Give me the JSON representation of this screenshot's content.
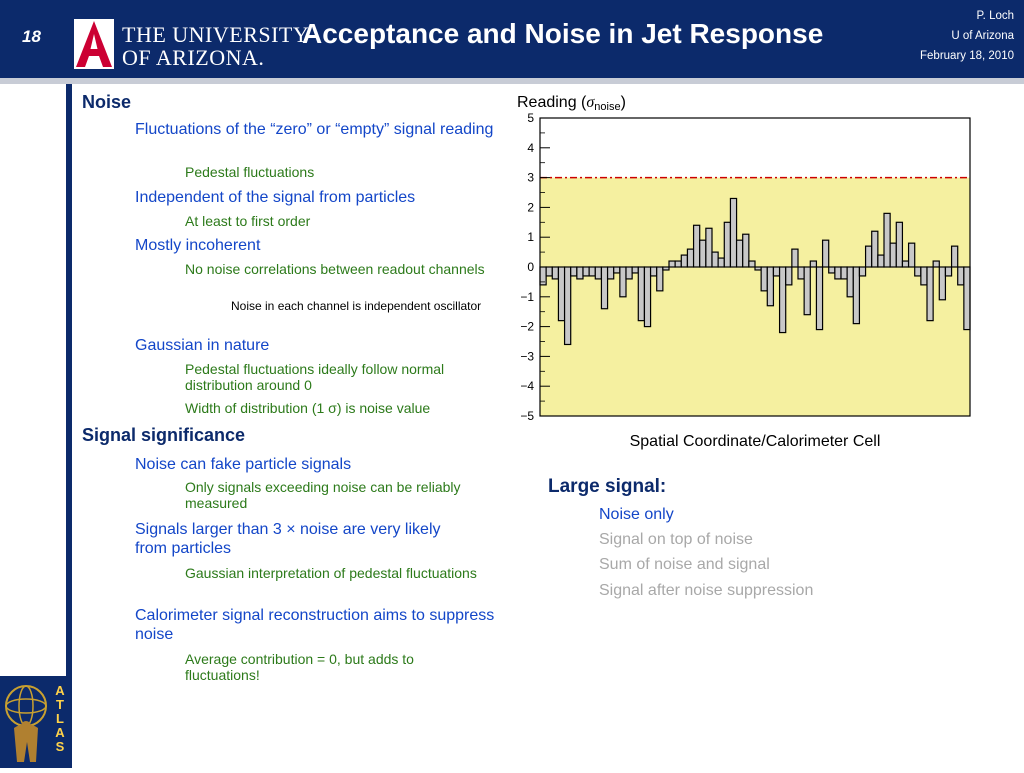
{
  "header": {
    "slide_number": "18",
    "university_line1": "THE UNIVERSITY",
    "university_line2": "OF ARIZONA.",
    "title": "Acceptance and Noise in Jet Response",
    "author": "P. Loch",
    "affiliation": "U of Arizona",
    "date": "February 18, 2010"
  },
  "left_column": {
    "noise_heading": "Noise",
    "item1": "Fluctuations of the “zero” or “empty” signal reading",
    "item1_sub": "Pedestal fluctuations",
    "item2": "Independent of the signal from particles",
    "item2_sub": "At least to first order",
    "item3": "Mostly incoherent",
    "item3_sub": "No noise correlations between readout channels",
    "item3_subsub": "Noise in each channel is independent oscillator",
    "item4": "Gaussian in nature",
    "item4_sub1": "Pedestal fluctuations ideally follow normal distribution around 0",
    "item4_sub2": "Width of distribution (1 σ) is noise value",
    "signif_heading": "Signal significance",
    "item5": "Noise can fake particle signals",
    "item5_sub": "Only signals exceeding noise can be reliably measured",
    "item6": "Signals larger than 3 × noise are very likely from particles",
    "item6_sub": "Gaussian interpretation of pedestal fluctuations",
    "item7": "Calorimeter signal reconstruction aims to suppress noise",
    "item7_sub": "Average contribution = 0, but adds to fluctuations!"
  },
  "right_column": {
    "large_signal_heading": "Large signal:",
    "steps": [
      "Noise only",
      "Signal on top of noise",
      "Sum of noise and signal",
      "Signal after noise suppression"
    ]
  },
  "atlas_label": "ATLAS",
  "colors": {
    "header_bg": "#0c2a6b",
    "band": "#f5f0a0",
    "bars": "#c8c8c8",
    "threshold": "#cc0000"
  },
  "chart_data": {
    "type": "bar",
    "ylabel_prefix": "Reading (",
    "ylabel_symbol": "σ",
    "ylabel_sub": "noise",
    "ylabel_suffix": ")",
    "xlabel": "Spatial Coordinate/Calorimeter Cell",
    "ylim": [
      -5,
      5
    ],
    "yticks": [
      -5,
      -4,
      -3,
      -2,
      -1,
      0,
      1,
      2,
      3,
      4,
      5
    ],
    "threshold": 3,
    "grid": false,
    "values": [
      -0.6,
      -0.3,
      -0.4,
      -1.8,
      -2.6,
      -0.3,
      -0.4,
      -0.3,
      -0.3,
      -0.4,
      -1.4,
      -0.4,
      -0.2,
      -1.0,
      -0.4,
      -0.2,
      -1.8,
      -2.0,
      -0.3,
      -0.8,
      -0.1,
      0.2,
      0.2,
      0.4,
      0.6,
      1.4,
      0.9,
      1.3,
      0.5,
      0.3,
      1.5,
      2.3,
      0.9,
      1.1,
      0.2,
      -0.1,
      -0.8,
      -1.3,
      -0.3,
      -2.2,
      -0.6,
      0.6,
      -0.4,
      -1.6,
      0.2,
      -2.1,
      0.9,
      -0.2,
      -0.4,
      -0.4,
      -1.0,
      -1.9,
      -0.3,
      0.7,
      1.2,
      0.4,
      1.8,
      0.8,
      1.5,
      0.2,
      0.8,
      -0.3,
      -0.6,
      -1.8,
      0.2,
      -1.1,
      -0.3,
      0.7,
      -0.6,
      -2.1
    ]
  }
}
